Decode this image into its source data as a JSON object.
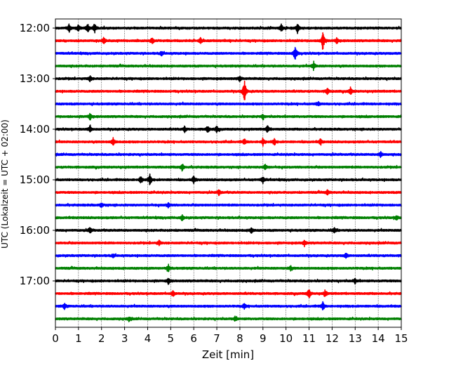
{
  "chart_data": {
    "type": "line",
    "title": "",
    "xlabel": "Zeit  [min]",
    "ylabel": "UTC (Lokalzeit = UTC + 02:00)",
    "xlim": [
      0,
      15
    ],
    "x_ticks": [
      "0",
      "1",
      "2",
      "3",
      "4",
      "5",
      "6",
      "7",
      "8",
      "9",
      "10",
      "11",
      "12",
      "13",
      "14",
      "15"
    ],
    "y_tick_labels": [
      {
        "label": "12:00",
        "trace": 0
      },
      {
        "label": "13:00",
        "trace": 4
      },
      {
        "label": "14:00",
        "trace": 8
      },
      {
        "label": "15:00",
        "trace": 12
      },
      {
        "label": "16:00",
        "trace": 16
      },
      {
        "label": "17:00",
        "trace": 20
      }
    ],
    "trace_interval_minutes": 15,
    "color_cycle": [
      "#000000",
      "#ff0000",
      "#0000ff",
      "#008000"
    ],
    "grid": "vertical dotted lines at each minute",
    "series": [
      {
        "start": "12:00",
        "color": "#000000",
        "events": [
          {
            "x": 0.6,
            "amp": 0.35
          },
          {
            "x": 1.0,
            "amp": 0.3
          },
          {
            "x": 1.4,
            "amp": 0.45
          },
          {
            "x": 1.7,
            "amp": 0.4
          },
          {
            "x": 9.8,
            "amp": 0.3
          },
          {
            "x": 10.5,
            "amp": 0.4
          }
        ]
      },
      {
        "start": "12:15",
        "color": "#ff0000",
        "events": [
          {
            "x": 2.1,
            "amp": 0.25
          },
          {
            "x": 4.2,
            "amp": 0.25
          },
          {
            "x": 6.3,
            "amp": 0.25
          },
          {
            "x": 11.6,
            "amp": 0.9
          },
          {
            "x": 12.2,
            "amp": 0.25
          }
        ]
      },
      {
        "start": "12:30",
        "color": "#0000ff",
        "events": [
          {
            "x": 4.6,
            "amp": 0.2
          },
          {
            "x": 10.4,
            "amp": 0.75
          }
        ]
      },
      {
        "start": "12:45",
        "color": "#008000",
        "events": [
          {
            "x": 11.2,
            "amp": 0.35
          }
        ]
      },
      {
        "start": "13:00",
        "color": "#000000",
        "events": [
          {
            "x": 1.5,
            "amp": 0.25
          },
          {
            "x": 8.0,
            "amp": 0.2
          }
        ]
      },
      {
        "start": "13:15",
        "color": "#ff0000",
        "events": [
          {
            "x": 8.2,
            "amp": 1.05
          },
          {
            "x": 11.8,
            "amp": 0.3
          },
          {
            "x": 12.8,
            "amp": 0.3
          }
        ]
      },
      {
        "start": "13:30",
        "color": "#0000ff",
        "events": [
          {
            "x": 11.4,
            "amp": 0.2
          }
        ]
      },
      {
        "start": "13:45",
        "color": "#008000",
        "events": [
          {
            "x": 1.5,
            "amp": 0.3
          },
          {
            "x": 9.0,
            "amp": 0.2
          }
        ]
      },
      {
        "start": "14:00",
        "color": "#000000",
        "events": [
          {
            "x": 1.5,
            "amp": 0.3
          },
          {
            "x": 5.6,
            "amp": 0.25
          },
          {
            "x": 6.6,
            "amp": 0.3
          },
          {
            "x": 7.0,
            "amp": 0.25
          },
          {
            "x": 9.2,
            "amp": 0.3
          }
        ]
      },
      {
        "start": "14:15",
        "color": "#ff0000",
        "events": [
          {
            "x": 2.5,
            "amp": 0.35
          },
          {
            "x": 8.2,
            "amp": 0.25
          },
          {
            "x": 9.0,
            "amp": 0.3
          },
          {
            "x": 9.5,
            "amp": 0.25
          },
          {
            "x": 11.5,
            "amp": 0.25
          }
        ]
      },
      {
        "start": "14:30",
        "color": "#0000ff",
        "events": [
          {
            "x": 14.1,
            "amp": 0.25
          }
        ]
      },
      {
        "start": "14:45",
        "color": "#008000",
        "events": [
          {
            "x": 5.5,
            "amp": 0.3
          },
          {
            "x": 9.1,
            "amp": 0.25
          }
        ]
      },
      {
        "start": "15:00",
        "color": "#000000",
        "events": [
          {
            "x": 3.7,
            "amp": 0.3
          },
          {
            "x": 4.1,
            "amp": 0.45
          },
          {
            "x": 6.0,
            "amp": 0.3
          },
          {
            "x": 9.0,
            "amp": 0.25
          }
        ]
      },
      {
        "start": "15:15",
        "color": "#ff0000",
        "events": [
          {
            "x": 7.1,
            "amp": 0.25
          },
          {
            "x": 11.8,
            "amp": 0.2
          }
        ]
      },
      {
        "start": "15:30",
        "color": "#0000ff",
        "events": [
          {
            "x": 2.0,
            "amp": 0.2
          },
          {
            "x": 4.9,
            "amp": 0.2
          }
        ]
      },
      {
        "start": "15:45",
        "color": "#008000",
        "events": [
          {
            "x": 5.5,
            "amp": 0.25
          },
          {
            "x": 14.8,
            "amp": 0.2
          }
        ]
      },
      {
        "start": "16:00",
        "color": "#000000",
        "events": [
          {
            "x": 1.5,
            "amp": 0.25
          },
          {
            "x": 8.5,
            "amp": 0.25
          },
          {
            "x": 12.1,
            "amp": 0.25
          }
        ]
      },
      {
        "start": "16:15",
        "color": "#ff0000",
        "events": [
          {
            "x": 4.5,
            "amp": 0.2
          },
          {
            "x": 10.8,
            "amp": 0.25
          }
        ]
      },
      {
        "start": "16:30",
        "color": "#0000ff",
        "events": [
          {
            "x": 2.5,
            "amp": 0.15
          },
          {
            "x": 12.6,
            "amp": 0.2
          }
        ]
      },
      {
        "start": "16:45",
        "color": "#008000",
        "events": [
          {
            "x": 4.9,
            "amp": 0.3
          },
          {
            "x": 10.2,
            "amp": 0.2
          }
        ]
      },
      {
        "start": "17:00",
        "color": "#000000",
        "events": [
          {
            "x": 4.9,
            "amp": 0.25
          },
          {
            "x": 13.0,
            "amp": 0.2
          }
        ]
      },
      {
        "start": "17:15",
        "color": "#ff0000",
        "events": [
          {
            "x": 5.1,
            "amp": 0.25
          },
          {
            "x": 11.0,
            "amp": 0.45
          },
          {
            "x": 11.7,
            "amp": 0.3
          }
        ]
      },
      {
        "start": "17:30",
        "color": "#0000ff",
        "events": [
          {
            "x": 0.4,
            "amp": 0.25
          },
          {
            "x": 8.2,
            "amp": 0.2
          },
          {
            "x": 11.6,
            "amp": 0.35
          }
        ]
      },
      {
        "start": "17:45",
        "color": "#008000",
        "events": [
          {
            "x": 3.2,
            "amp": 0.2
          },
          {
            "x": 7.8,
            "amp": 0.2
          }
        ]
      }
    ]
  }
}
